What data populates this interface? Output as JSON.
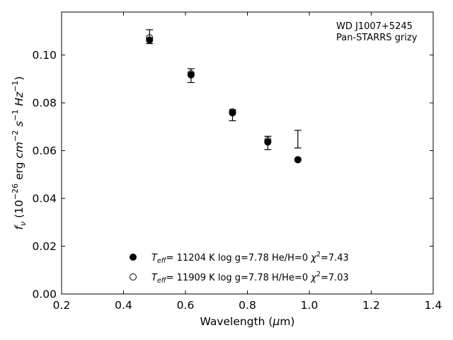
{
  "chart_data": {
    "type": "scatter",
    "annotation": [
      "WD J1007+5245",
      "Pan-STARRS grizy"
    ],
    "xlabel_prefix": "Wavelength (",
    "xlabel_symbol": "μ",
    "xlabel_suffix": "m)",
    "ylabel": {
      "prefix": "f",
      "prefix_sub": "ν",
      "open": " (10",
      "exp1": "−26",
      "middle": " erg ",
      "cm": "cm",
      "exp2": "−2",
      "s": " s",
      "exp3": "−1",
      "hz": " Hz",
      "exp4": "−1",
      "close": ")"
    },
    "xlim": [
      0.2,
      1.4
    ],
    "ylim": [
      0.0,
      0.118
    ],
    "xticks": [
      0.2,
      0.4,
      0.6,
      0.8,
      1.0,
      1.2,
      1.4
    ],
    "xtick_labels": [
      "0.2",
      "0.4",
      "0.6",
      "0.8",
      "1.0",
      "1.2",
      "1.4"
    ],
    "yticks": [
      0.0,
      0.02,
      0.04,
      0.06,
      0.08,
      0.1
    ],
    "ytick_labels": [
      "0.00",
      "0.02",
      "0.04",
      "0.06",
      "0.08",
      "0.10"
    ],
    "observed": {
      "x": [
        0.484,
        0.618,
        0.752,
        0.866,
        0.963
      ],
      "y": [
        0.1077,
        0.0914,
        0.0748,
        0.0632,
        0.0648
      ],
      "err": [
        0.0029,
        0.0029,
        0.0023,
        0.0028,
        0.0037
      ]
    },
    "series": [
      {
        "marker": "filled",
        "legend": {
          "pre": "T",
          "sub": "eff",
          "post": "= 11204 K  log g=7.78  He/H=0  ",
          "chi": "χ",
          "sup": "2",
          "end": "=7.43"
        },
        "x": [
          0.484,
          0.618,
          0.752,
          0.866,
          0.963
        ],
        "y": [
          0.1063,
          0.0917,
          0.0758,
          0.0636,
          0.0562
        ]
      },
      {
        "marker": "open",
        "legend": {
          "pre": "T",
          "sub": "eff",
          "post": "= 11909 K  log g=7.78  H/He=0  ",
          "chi": "χ",
          "sup": "2",
          "end": "=7.03"
        },
        "x": [
          0.484,
          0.618,
          0.752,
          0.866,
          0.963
        ],
        "y": [
          0.1072,
          0.0922,
          0.0762,
          0.0642,
          0.0562
        ]
      }
    ]
  }
}
